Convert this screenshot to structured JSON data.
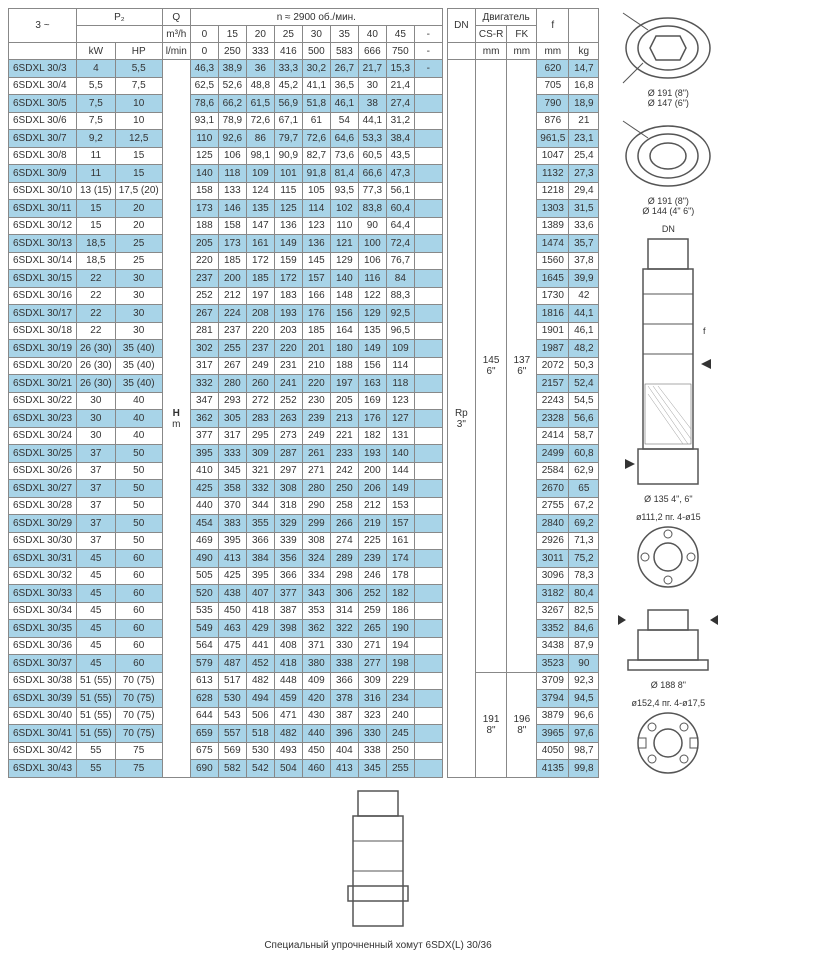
{
  "headers": {
    "phase": "3 ~",
    "p2": "P₂",
    "kw": "kW",
    "hp": "HP",
    "q": "Q",
    "q_unit1": "m³/h",
    "q_unit2": "l/min",
    "rpm": "n ≈ 2900 об./мин.",
    "dn": "DN",
    "motor": "Двигатель",
    "csr": "CS-R",
    "fk": "FK",
    "mm": "mm",
    "f": "f",
    "kg": "kg",
    "h": "H",
    "m": "m",
    "rp3": "Rp 3\"",
    "mot145": "145 6\"",
    "mot137": "137 6\"",
    "mot191": "191 8\"",
    "mot196": "196 8\""
  },
  "flow_m3h": [
    "0",
    "15",
    "20",
    "25",
    "30",
    "35",
    "40",
    "45",
    "-"
  ],
  "flow_lmin": [
    "0",
    "250",
    "333",
    "416",
    "500",
    "583",
    "666",
    "750",
    "-"
  ],
  "rows": [
    {
      "model": "6SDXL 30/3",
      "kw": "4",
      "hp": "5,5",
      "h": [
        "46,3",
        "38,9",
        "36",
        "33,3",
        "30,2",
        "26,7",
        "21,7",
        "15,3",
        "-"
      ],
      "f": "620",
      "kg": "14,7"
    },
    {
      "model": "6SDXL 30/4",
      "kw": "5,5",
      "hp": "7,5",
      "h": [
        "62,5",
        "52,6",
        "48,8",
        "45,2",
        "41,1",
        "36,5",
        "30",
        "21,4",
        ""
      ],
      "f": "705",
      "kg": "16,8"
    },
    {
      "model": "6SDXL 30/5",
      "kw": "7,5",
      "hp": "10",
      "h": [
        "78,6",
        "66,2",
        "61,5",
        "56,9",
        "51,8",
        "46,1",
        "38",
        "27,4",
        ""
      ],
      "f": "790",
      "kg": "18,9"
    },
    {
      "model": "6SDXL 30/6",
      "kw": "7,5",
      "hp": "10",
      "h": [
        "93,1",
        "78,9",
        "72,6",
        "67,1",
        "61",
        "54",
        "44,1",
        "31,2",
        ""
      ],
      "f": "876",
      "kg": "21"
    },
    {
      "model": "6SDXL 30/7",
      "kw": "9,2",
      "hp": "12,5",
      "h": [
        "110",
        "92,6",
        "86",
        "79,7",
        "72,6",
        "64,6",
        "53,3",
        "38,4",
        ""
      ],
      "f": "961,5",
      "kg": "23,1"
    },
    {
      "model": "6SDXL 30/8",
      "kw": "11",
      "hp": "15",
      "h": [
        "125",
        "106",
        "98,1",
        "90,9",
        "82,7",
        "73,6",
        "60,5",
        "43,5",
        ""
      ],
      "f": "1047",
      "kg": "25,4"
    },
    {
      "model": "6SDXL 30/9",
      "kw": "11",
      "hp": "15",
      "h": [
        "140",
        "118",
        "109",
        "101",
        "91,8",
        "81,4",
        "66,6",
        "47,3",
        ""
      ],
      "f": "1132",
      "kg": "27,3"
    },
    {
      "model": "6SDXL 30/10",
      "kw": "13 (15)",
      "hp": "17,5 (20)",
      "h": [
        "158",
        "133",
        "124",
        "115",
        "105",
        "93,5",
        "77,3",
        "56,1",
        ""
      ],
      "f": "1218",
      "kg": "29,4"
    },
    {
      "model": "6SDXL 30/11",
      "kw": "15",
      "hp": "20",
      "h": [
        "173",
        "146",
        "135",
        "125",
        "114",
        "102",
        "83,8",
        "60,4",
        ""
      ],
      "f": "1303",
      "kg": "31,5"
    },
    {
      "model": "6SDXL 30/12",
      "kw": "15",
      "hp": "20",
      "h": [
        "188",
        "158",
        "147",
        "136",
        "123",
        "110",
        "90",
        "64,4",
        ""
      ],
      "f": "1389",
      "kg": "33,6"
    },
    {
      "model": "6SDXL 30/13",
      "kw": "18,5",
      "hp": "25",
      "h": [
        "205",
        "173",
        "161",
        "149",
        "136",
        "121",
        "100",
        "72,4",
        ""
      ],
      "f": "1474",
      "kg": "35,7"
    },
    {
      "model": "6SDXL 30/14",
      "kw": "18,5",
      "hp": "25",
      "h": [
        "220",
        "185",
        "172",
        "159",
        "145",
        "129",
        "106",
        "76,7",
        ""
      ],
      "f": "1560",
      "kg": "37,8"
    },
    {
      "model": "6SDXL 30/15",
      "kw": "22",
      "hp": "30",
      "h": [
        "237",
        "200",
        "185",
        "172",
        "157",
        "140",
        "116",
        "84",
        ""
      ],
      "f": "1645",
      "kg": "39,9"
    },
    {
      "model": "6SDXL 30/16",
      "kw": "22",
      "hp": "30",
      "h": [
        "252",
        "212",
        "197",
        "183",
        "166",
        "148",
        "122",
        "88,3",
        ""
      ],
      "f": "1730",
      "kg": "42"
    },
    {
      "model": "6SDXL 30/17",
      "kw": "22",
      "hp": "30",
      "h": [
        "267",
        "224",
        "208",
        "193",
        "176",
        "156",
        "129",
        "92,5",
        ""
      ],
      "f": "1816",
      "kg": "44,1"
    },
    {
      "model": "6SDXL 30/18",
      "kw": "22",
      "hp": "30",
      "h": [
        "281",
        "237",
        "220",
        "203",
        "185",
        "164",
        "135",
        "96,5",
        ""
      ],
      "f": "1901",
      "kg": "46,1"
    },
    {
      "model": "6SDXL 30/19",
      "kw": "26 (30)",
      "hp": "35 (40)",
      "h": [
        "302",
        "255",
        "237",
        "220",
        "201",
        "180",
        "149",
        "109",
        ""
      ],
      "f": "1987",
      "kg": "48,2"
    },
    {
      "model": "6SDXL 30/20",
      "kw": "26 (30)",
      "hp": "35 (40)",
      "h": [
        "317",
        "267",
        "249",
        "231",
        "210",
        "188",
        "156",
        "114",
        ""
      ],
      "f": "2072",
      "kg": "50,3"
    },
    {
      "model": "6SDXL 30/21",
      "kw": "26 (30)",
      "hp": "35 (40)",
      "h": [
        "332",
        "280",
        "260",
        "241",
        "220",
        "197",
        "163",
        "118",
        ""
      ],
      "f": "2157",
      "kg": "52,4"
    },
    {
      "model": "6SDXL 30/22",
      "kw": "30",
      "hp": "40",
      "h": [
        "347",
        "293",
        "272",
        "252",
        "230",
        "205",
        "169",
        "123",
        ""
      ],
      "f": "2243",
      "kg": "54,5"
    },
    {
      "model": "6SDXL 30/23",
      "kw": "30",
      "hp": "40",
      "h": [
        "362",
        "305",
        "283",
        "263",
        "239",
        "213",
        "176",
        "127",
        ""
      ],
      "f": "2328",
      "kg": "56,6"
    },
    {
      "model": "6SDXL 30/24",
      "kw": "30",
      "hp": "40",
      "h": [
        "377",
        "317",
        "295",
        "273",
        "249",
        "221",
        "182",
        "131",
        ""
      ],
      "f": "2414",
      "kg": "58,7"
    },
    {
      "model": "6SDXL 30/25",
      "kw": "37",
      "hp": "50",
      "h": [
        "395",
        "333",
        "309",
        "287",
        "261",
        "233",
        "193",
        "140",
        ""
      ],
      "f": "2499",
      "kg": "60,8"
    },
    {
      "model": "6SDXL 30/26",
      "kw": "37",
      "hp": "50",
      "h": [
        "410",
        "345",
        "321",
        "297",
        "271",
        "242",
        "200",
        "144",
        ""
      ],
      "f": "2584",
      "kg": "62,9"
    },
    {
      "model": "6SDXL 30/27",
      "kw": "37",
      "hp": "50",
      "h": [
        "425",
        "358",
        "332",
        "308",
        "280",
        "250",
        "206",
        "149",
        ""
      ],
      "f": "2670",
      "kg": "65"
    },
    {
      "model": "6SDXL 30/28",
      "kw": "37",
      "hp": "50",
      "h": [
        "440",
        "370",
        "344",
        "318",
        "290",
        "258",
        "212",
        "153",
        ""
      ],
      "f": "2755",
      "kg": "67,2"
    },
    {
      "model": "6SDXL 30/29",
      "kw": "37",
      "hp": "50",
      "h": [
        "454",
        "383",
        "355",
        "329",
        "299",
        "266",
        "219",
        "157",
        ""
      ],
      "f": "2840",
      "kg": "69,2"
    },
    {
      "model": "6SDXL 30/30",
      "kw": "37",
      "hp": "50",
      "h": [
        "469",
        "395",
        "366",
        "339",
        "308",
        "274",
        "225",
        "161",
        ""
      ],
      "f": "2926",
      "kg": "71,3"
    },
    {
      "model": "6SDXL 30/31",
      "kw": "45",
      "hp": "60",
      "h": [
        "490",
        "413",
        "384",
        "356",
        "324",
        "289",
        "239",
        "174",
        ""
      ],
      "f": "3011",
      "kg": "75,2"
    },
    {
      "model": "6SDXL 30/32",
      "kw": "45",
      "hp": "60",
      "h": [
        "505",
        "425",
        "395",
        "366",
        "334",
        "298",
        "246",
        "178",
        ""
      ],
      "f": "3096",
      "kg": "78,3"
    },
    {
      "model": "6SDXL 30/33",
      "kw": "45",
      "hp": "60",
      "h": [
        "520",
        "438",
        "407",
        "377",
        "343",
        "306",
        "252",
        "182",
        ""
      ],
      "f": "3182",
      "kg": "80,4"
    },
    {
      "model": "6SDXL 30/34",
      "kw": "45",
      "hp": "60",
      "h": [
        "535",
        "450",
        "418",
        "387",
        "353",
        "314",
        "259",
        "186",
        ""
      ],
      "f": "3267",
      "kg": "82,5"
    },
    {
      "model": "6SDXL 30/35",
      "kw": "45",
      "hp": "60",
      "h": [
        "549",
        "463",
        "429",
        "398",
        "362",
        "322",
        "265",
        "190",
        ""
      ],
      "f": "3352",
      "kg": "84,6"
    },
    {
      "model": "6SDXL 30/36",
      "kw": "45",
      "hp": "60",
      "h": [
        "564",
        "475",
        "441",
        "408",
        "371",
        "330",
        "271",
        "194",
        ""
      ],
      "f": "3438",
      "kg": "87,9"
    },
    {
      "model": "6SDXL 30/37",
      "kw": "45",
      "hp": "60",
      "h": [
        "579",
        "487",
        "452",
        "418",
        "380",
        "338",
        "277",
        "198",
        ""
      ],
      "f": "3523",
      "kg": "90"
    },
    {
      "model": "6SDXL 30/38",
      "kw": "51 (55)",
      "hp": "70 (75)",
      "h": [
        "613",
        "517",
        "482",
        "448",
        "409",
        "366",
        "309",
        "229",
        ""
      ],
      "f": "3709",
      "kg": "92,3"
    },
    {
      "model": "6SDXL 30/39",
      "kw": "51 (55)",
      "hp": "70 (75)",
      "h": [
        "628",
        "530",
        "494",
        "459",
        "420",
        "378",
        "316",
        "234",
        ""
      ],
      "f": "3794",
      "kg": "94,5"
    },
    {
      "model": "6SDXL 30/40",
      "kw": "51 (55)",
      "hp": "70 (75)",
      "h": [
        "644",
        "543",
        "506",
        "471",
        "430",
        "387",
        "323",
        "240",
        ""
      ],
      "f": "3879",
      "kg": "96,6"
    },
    {
      "model": "6SDXL 30/41",
      "kw": "51 (55)",
      "hp": "70 (75)",
      "h": [
        "659",
        "557",
        "518",
        "482",
        "440",
        "396",
        "330",
        "245",
        ""
      ],
      "f": "3965",
      "kg": "97,6"
    },
    {
      "model": "6SDXL 30/42",
      "kw": "55",
      "hp": "75",
      "h": [
        "675",
        "569",
        "530",
        "493",
        "450",
        "404",
        "338",
        "250",
        ""
      ],
      "f": "4050",
      "kg": "98,7"
    },
    {
      "model": "6SDXL 30/43",
      "kw": "55",
      "hp": "75",
      "h": [
        "690",
        "582",
        "542",
        "504",
        "460",
        "413",
        "345",
        "255",
        ""
      ],
      "f": "4135",
      "kg": "99,8"
    }
  ],
  "diagrams": {
    "d1": "Ø 191 (8\")",
    "d1b": "Ø 147 (6\")",
    "d2": "Ø 191 (8\")",
    "d2b": "Ø 144 (4\" 6\")",
    "d3": "DN",
    "d4": "Ø 135  4\", 6\"",
    "d5": "ø111,2 пг. 4-ø15",
    "d6": "Ø 188   8\"",
    "d7": "ø152,4 пг. 4-ø17,5",
    "caption": "Специальный упрочненный хомут 6SDX(L) 30/36"
  }
}
